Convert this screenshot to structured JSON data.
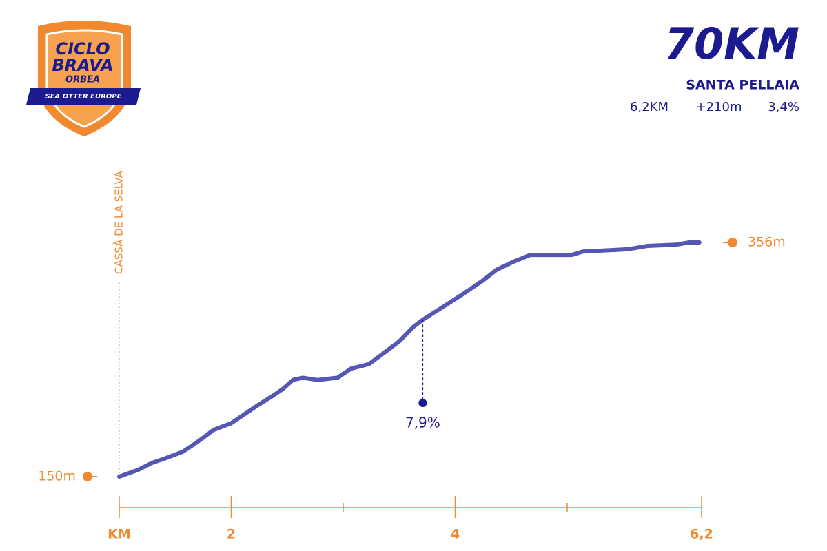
{
  "logo": {
    "line1": "CICLO",
    "line2": "BRAVA",
    "brand": "ORBEA",
    "banner": "SEA OTTER EUROPE"
  },
  "header": {
    "title": "70KM",
    "subtitle": "SANTA PELLAIA",
    "stats": [
      "6,2KM",
      "+210m",
      "3,4%"
    ]
  },
  "chart_data": {
    "type": "line",
    "start_label": "CASSÀ DE LA SELVA",
    "x": [
      1.0,
      1.17,
      1.29,
      1.41,
      1.57,
      1.72,
      1.84,
      2.0,
      2.12,
      2.24,
      2.37,
      2.46,
      2.55,
      2.64,
      2.77,
      2.95,
      3.07,
      3.23,
      3.38,
      3.5,
      3.63,
      3.71,
      3.87,
      4.06,
      4.24,
      4.37,
      4.52,
      4.67,
      4.86,
      5.04,
      5.14,
      5.35,
      5.54,
      5.72,
      5.97,
      6.09,
      6.18
    ],
    "series": [
      {
        "color": "#5656b4",
        "values": [
          150,
          156,
          162,
          166,
          172,
          182,
          191,
          197,
          205,
          213,
          221,
          227,
          235,
          237,
          235,
          237,
          245,
          249,
          260,
          269,
          282,
          288,
          298,
          310,
          322,
          332,
          339,
          345,
          345,
          345,
          348,
          349,
          350,
          353,
          354,
          356,
          356
        ]
      }
    ],
    "xlim": [
      1,
      6.2
    ],
    "xticks": [
      {
        "value": 1,
        "label": "KM"
      },
      2,
      4,
      {
        "value": 6.2,
        "label": "6,2"
      }
    ],
    "minor_xticks": [
      3,
      5
    ],
    "ylim": [
      150,
      356
    ],
    "yticks": [
      {
        "value": 150,
        "label": "150m"
      },
      {
        "value": 356,
        "label": "356m"
      }
    ],
    "axis_color": "#f0892f",
    "annotations": [
      {
        "x": 3.71,
        "label": "7,9%"
      }
    ]
  }
}
